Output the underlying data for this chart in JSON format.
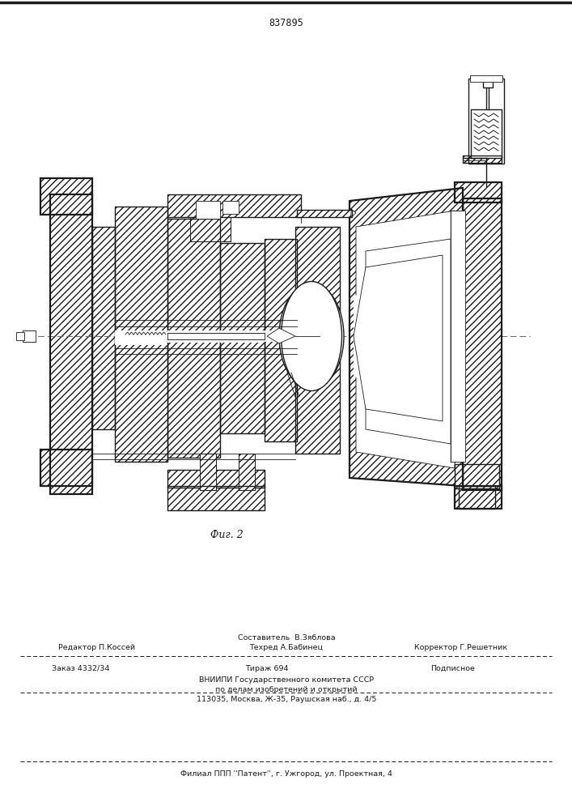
{
  "page_number": "837895",
  "fig_label": "Фиг. 2",
  "bg_color": "#ffffff",
  "line_color": "#1a1a1a",
  "bottom_text_line1": "Составитель  В.Зяблова",
  "bottom_text_line2a": "Редактор П.Коссей",
  "bottom_text_line2b": "Техред А.Бабинец",
  "bottom_text_line2c": "Корректор Г.Решетник",
  "bottom_text_line3a": "Заказ 4332/34",
  "bottom_text_line3b": "Тираж 694",
  "bottom_text_line3c": "Подписное",
  "bottom_text_line4": "ВНИИПИ Государственного комитета СССР",
  "bottom_text_line5": "по делам изобретений и открытий",
  "bottom_text_line6": "113035, Москва, Ж-35, Раушская наб., д. 4/5",
  "bottom_text_line7": "Филиал ППП ''Патент'', г. Ужгород, ул. Проектная, 4"
}
